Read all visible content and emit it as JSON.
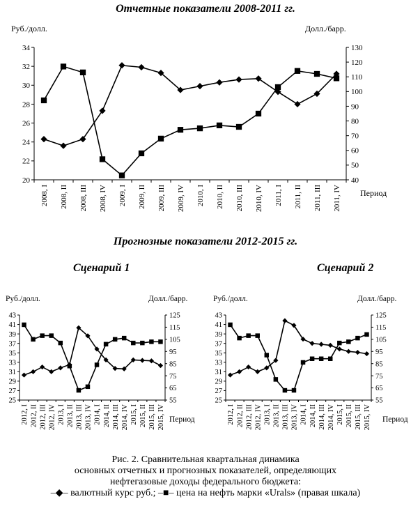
{
  "chart_data": [
    {
      "type": "line",
      "title": "Отчетные показатели 2008-2011 гг.",
      "ylabel": "Руб./долл.",
      "y2label": "Долл./барр.",
      "xlabel": "Период",
      "ylim": [
        20,
        34
      ],
      "y2lim": [
        40,
        130
      ],
      "yticks": [
        "20",
        "22",
        "24",
        "26",
        "28",
        "30",
        "32",
        "34"
      ],
      "y2ticks": [
        "40",
        "50",
        "60",
        "70",
        "80",
        "90",
        "100",
        "110",
        "120",
        "130"
      ],
      "categories": [
        "2008, I",
        "2008, II",
        "2008, III",
        "2008, IV",
        "2009, I",
        "2009, II",
        "2009, III",
        "2009, IV",
        "2010, I",
        "2010, II",
        "2010, III",
        "2010, IV",
        "2011, I",
        "2011, II",
        "2011, III",
        "2011, IV"
      ],
      "series": [
        {
          "name": "валютный курс руб.",
          "axis": "left",
          "marker": "diamond",
          "values": [
            24.3,
            23.6,
            24.3,
            27.3,
            32.1,
            31.9,
            31.3,
            29.5,
            29.9,
            30.3,
            30.6,
            30.7,
            29.3,
            28.0,
            29.1,
            31.2
          ]
        },
        {
          "name": "цена на нефть марки «Urals»",
          "axis": "right",
          "marker": "square",
          "values": [
            94,
            117,
            113,
            54,
            43,
            58,
            68,
            74,
            75,
            77,
            76,
            85,
            103,
            114,
            112,
            109
          ]
        }
      ]
    },
    {
      "type": "line",
      "title": "Прогнозные показатели 2012-2015 гг.",
      "subtitle": "Сценарий 1",
      "ylabel": "Руб./долл.",
      "y2label": "Долл./барр.",
      "xlabel": "Период",
      "ylim": [
        25,
        43
      ],
      "y2lim": [
        55,
        125
      ],
      "yticks": [
        "25",
        "27",
        "29",
        "31",
        "33",
        "35",
        "37",
        "39",
        "41",
        "43"
      ],
      "y2ticks": [
        "55",
        "65",
        "75",
        "85",
        "95",
        "105",
        "115",
        "125"
      ],
      "categories": [
        "2012, I",
        "2012, II",
        "2012, III",
        "2012, IV",
        "2013, I",
        "2013, II",
        "2013, III",
        "2013, IV",
        "2014, I",
        "2014, II",
        "2014, III",
        "2014, IV",
        "2015, I",
        "2015, II",
        "2015, III",
        "2015, IV"
      ],
      "series": [
        {
          "name": "валютный курс руб.",
          "axis": "left",
          "marker": "diamond",
          "values": [
            30.3,
            31.0,
            32.0,
            31.0,
            31.8,
            32.5,
            40.3,
            38.6,
            35.8,
            33.5,
            31.7,
            31.6,
            33.5,
            33.4,
            33.3,
            32.3
          ]
        },
        {
          "name": "цена на нефть марки «Urals»",
          "axis": "right",
          "marker": "square",
          "values": [
            117,
            105,
            108,
            108,
            102,
            83,
            63,
            66,
            84,
            101,
            105,
            106,
            102,
            102,
            103,
            103
          ]
        }
      ]
    },
    {
      "type": "line",
      "subtitle": "Сценарий 2",
      "ylabel": "Руб./долл.",
      "y2label": "Долл./барр.",
      "xlabel": "Период",
      "ylim": [
        25,
        43
      ],
      "y2lim": [
        55,
        125
      ],
      "yticks": [
        "25",
        "27",
        "29",
        "31",
        "33",
        "35",
        "37",
        "39",
        "41",
        "43"
      ],
      "y2ticks": [
        "55",
        "65",
        "75",
        "85",
        "95",
        "105",
        "115",
        "125"
      ],
      "categories": [
        "2012, I",
        "2012, II",
        "2012, III",
        "2012, IV",
        "2013, I",
        "2013, II",
        "2013, III",
        "2013, IV",
        "2014, I",
        "2014, II",
        "2014, III",
        "2014, IV",
        "2015, I",
        "2015, II",
        "2015, III",
        "2015, IV"
      ],
      "series": [
        {
          "name": "валютный курс руб.",
          "axis": "left",
          "marker": "diamond",
          "values": [
            30.3,
            31.0,
            32.0,
            31.0,
            31.8,
            33.4,
            41.8,
            40.8,
            37.9,
            37.0,
            36.8,
            36.6,
            35.8,
            35.3,
            35.1,
            34.8
          ]
        },
        {
          "name": "цена на нефть марки «Urals»",
          "axis": "right",
          "marker": "square",
          "values": [
            117,
            106,
            108,
            108,
            92,
            72,
            63,
            63,
            86,
            89,
            89,
            89,
            102,
            103,
            106,
            109
          ]
        }
      ]
    }
  ],
  "caption": {
    "line1": "Рис. 2. Сравнительная квартальная динамика",
    "line2": "основных отчетных и прогнозных показателей, определяющих",
    "line3": "нефтегазовые доходы федерального бюджета:",
    "legend_text": "–◆– валютный курс руб.; –■– цена на нефть марки «Urals» (правая шкала)"
  }
}
